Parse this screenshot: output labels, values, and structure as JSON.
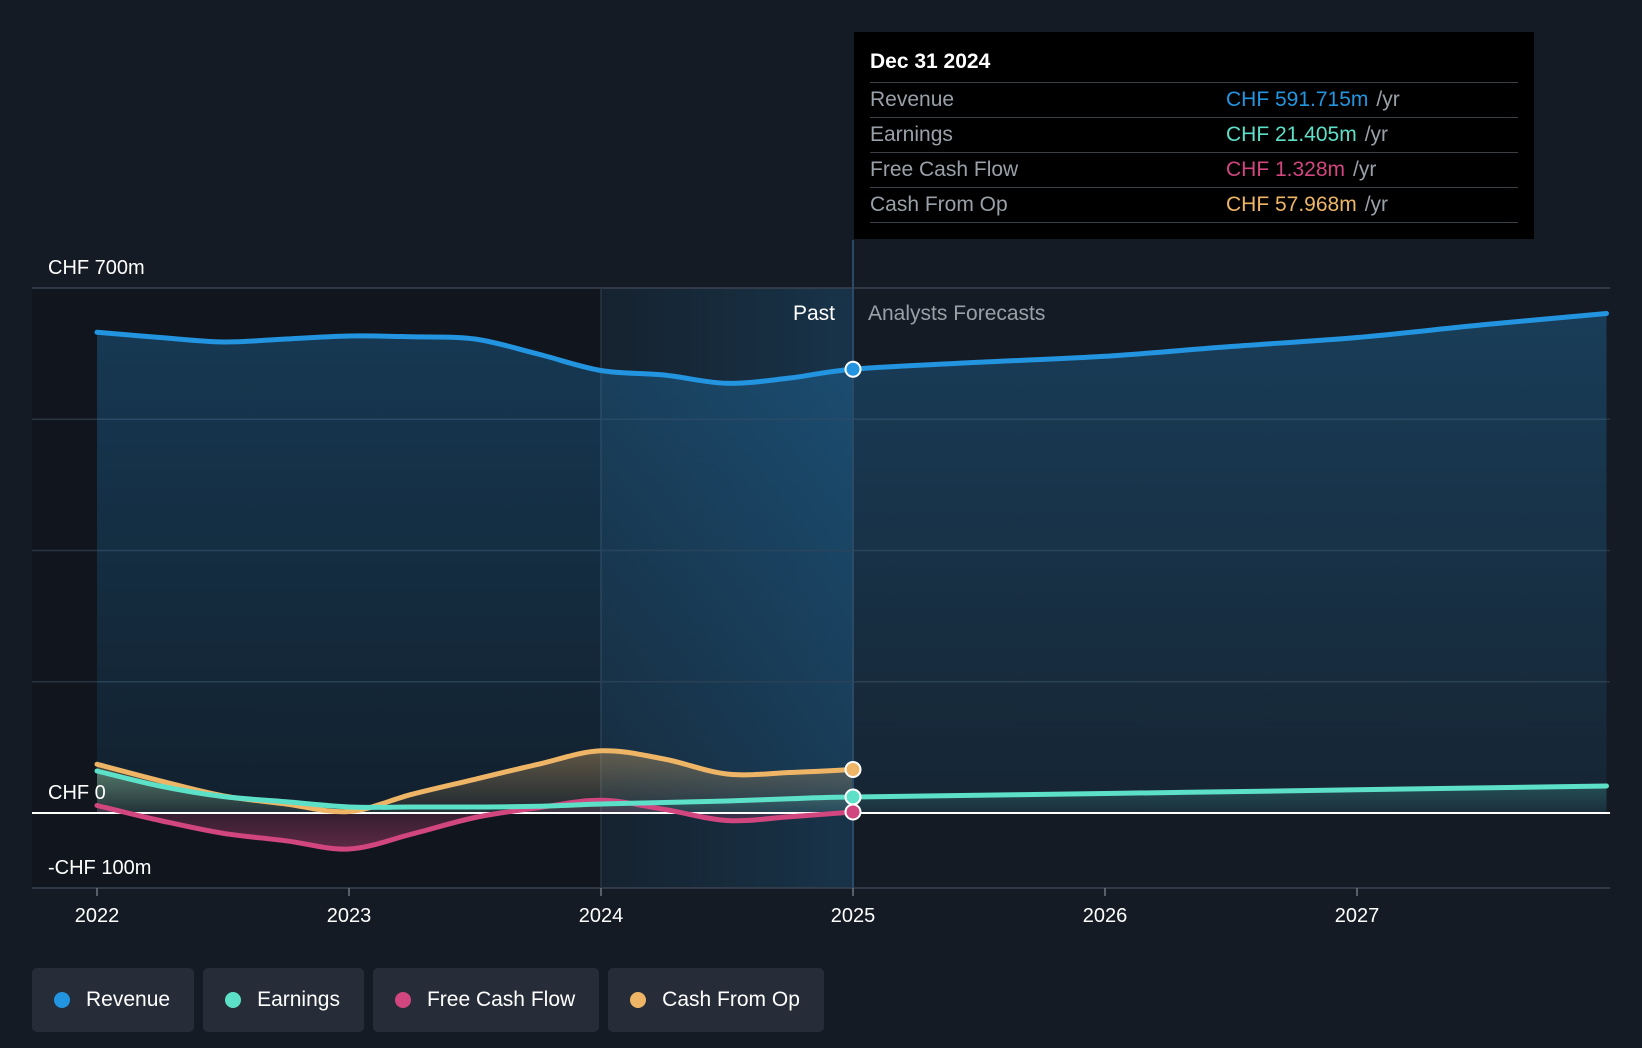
{
  "chart_data": {
    "type": "line",
    "currency": "CHF",
    "y_axis": {
      "ylim": [
        -100,
        700
      ],
      "tick_labels": [
        "CHF 700m",
        "CHF 0",
        "-CHF 100m"
      ]
    },
    "x_axis": {
      "ticks": [
        2022,
        2023,
        2024,
        2025,
        2026,
        2027
      ],
      "range": [
        2021.75,
        2027.99
      ]
    },
    "regions": {
      "past_label": "Past",
      "forecast_label": "Analysts Forecasts",
      "divider_x": 2025.0,
      "highlight_start_x": 2024.0
    },
    "series": [
      {
        "name": "Revenue",
        "color": "#2394df",
        "past": [
          [
            2022.0,
            641
          ],
          [
            2022.25,
            634
          ],
          [
            2022.5,
            628
          ],
          [
            2022.75,
            632
          ],
          [
            2023.0,
            636
          ],
          [
            2023.25,
            635
          ],
          [
            2023.5,
            632
          ],
          [
            2023.75,
            612
          ],
          [
            2024.0,
            590
          ],
          [
            2024.25,
            584
          ],
          [
            2024.5,
            573
          ],
          [
            2024.75,
            580
          ],
          [
            2025.0,
            591.7
          ]
        ],
        "forecast": [
          [
            2025.0,
            591.7
          ],
          [
            2025.5,
            601
          ],
          [
            2026.0,
            609
          ],
          [
            2026.5,
            622
          ],
          [
            2027.0,
            634
          ],
          [
            2027.5,
            651
          ],
          [
            2027.99,
            666
          ]
        ]
      },
      {
        "name": "Earnings",
        "color": "#5de0c8",
        "past": [
          [
            2022.0,
            56
          ],
          [
            2022.25,
            36
          ],
          [
            2022.5,
            22
          ],
          [
            2022.75,
            15
          ],
          [
            2023.0,
            8
          ],
          [
            2023.25,
            8
          ],
          [
            2023.5,
            8
          ],
          [
            2023.75,
            9
          ],
          [
            2024.0,
            12
          ],
          [
            2024.25,
            14
          ],
          [
            2024.5,
            16
          ],
          [
            2024.75,
            19
          ],
          [
            2025.0,
            21.4
          ]
        ],
        "forecast": [
          [
            2025.0,
            21.4
          ],
          [
            2026.0,
            26
          ],
          [
            2027.0,
            31
          ],
          [
            2027.99,
            36
          ]
        ]
      },
      {
        "name": "Free Cash Flow",
        "color": "#d1467f",
        "past": [
          [
            2022.0,
            10
          ],
          [
            2022.25,
            -10
          ],
          [
            2022.5,
            -27
          ],
          [
            2022.75,
            -37
          ],
          [
            2023.0,
            -48
          ],
          [
            2023.25,
            -28
          ],
          [
            2023.5,
            -6
          ],
          [
            2023.75,
            7
          ],
          [
            2024.0,
            17
          ],
          [
            2024.25,
            5
          ],
          [
            2024.5,
            -10
          ],
          [
            2024.75,
            -5
          ],
          [
            2025.0,
            1.3
          ]
        ]
      },
      {
        "name": "Cash From Op",
        "color": "#efb566",
        "past": [
          [
            2022.0,
            65
          ],
          [
            2022.25,
            43
          ],
          [
            2022.5,
            23
          ],
          [
            2022.75,
            12
          ],
          [
            2023.0,
            2
          ],
          [
            2023.25,
            25
          ],
          [
            2023.5,
            45
          ],
          [
            2023.75,
            65
          ],
          [
            2024.0,
            83
          ],
          [
            2024.25,
            72
          ],
          [
            2024.5,
            52
          ],
          [
            2024.75,
            54
          ],
          [
            2025.0,
            58
          ]
        ]
      }
    ]
  },
  "tooltip": {
    "date": "Dec 31 2024",
    "rows": [
      {
        "label": "Revenue",
        "value": "CHF 591.715m",
        "unit": "/yr",
        "color": "#2394df"
      },
      {
        "label": "Earnings",
        "value": "CHF 21.405m",
        "unit": "/yr",
        "color": "#5de0c8"
      },
      {
        "label": "Free Cash Flow",
        "value": "CHF 1.328m",
        "unit": "/yr",
        "color": "#d1467f"
      },
      {
        "label": "Cash From Op",
        "value": "CHF 57.968m",
        "unit": "/yr",
        "color": "#efb566"
      }
    ]
  },
  "legend": [
    {
      "label": "Revenue",
      "color": "#2394df"
    },
    {
      "label": "Earnings",
      "color": "#5de0c8"
    },
    {
      "label": "Free Cash Flow",
      "color": "#d1467f"
    },
    {
      "label": "Cash From Op",
      "color": "#efb566"
    }
  ]
}
